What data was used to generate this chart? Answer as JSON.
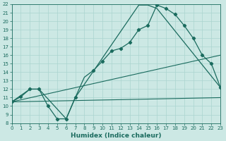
{
  "xlabel": "Humidex (Indice chaleur)",
  "xlim": [
    0,
    23
  ],
  "ylim": [
    8,
    22
  ],
  "xticks": [
    0,
    1,
    2,
    3,
    4,
    5,
    6,
    7,
    8,
    9,
    10,
    11,
    12,
    13,
    14,
    15,
    16,
    17,
    18,
    19,
    20,
    21,
    22,
    23
  ],
  "yticks": [
    8,
    9,
    10,
    11,
    12,
    13,
    14,
    15,
    16,
    17,
    18,
    19,
    20,
    21,
    22
  ],
  "bg_color": "#cce8e4",
  "grid_color": "#aad4cf",
  "line_color": "#1a6b5e",
  "line1_x": [
    0,
    1,
    2,
    3,
    4,
    5,
    6,
    7,
    8,
    9,
    10,
    11,
    12,
    13,
    14,
    15,
    16,
    17,
    18,
    19,
    20,
    21,
    22,
    23
  ],
  "line1_y": [
    10.5,
    11.1,
    12.0,
    12.0,
    10.0,
    8.5,
    8.5,
    11.0,
    13.4,
    14.2,
    15.3,
    16.5,
    16.8,
    17.5,
    19.0,
    19.5,
    21.9,
    21.5,
    20.8,
    19.5,
    18.0,
    16.0,
    15.0,
    12.2
  ],
  "line1_markers": [
    0,
    1,
    2,
    3,
    4,
    5,
    6,
    7,
    9,
    10,
    11,
    12,
    13,
    14,
    15,
    16,
    17,
    18,
    19,
    20,
    21,
    22,
    23
  ],
  "line2_x": [
    0,
    2,
    3,
    6,
    7,
    14,
    15,
    16,
    23
  ],
  "line2_y": [
    10.5,
    12.0,
    12.0,
    8.5,
    11.0,
    21.9,
    21.9,
    21.5,
    12.2
  ],
  "line3_x": [
    0,
    23
  ],
  "line3_y": [
    10.5,
    16.0
  ],
  "line4_x": [
    0,
    23
  ],
  "line4_y": [
    10.5,
    11.0
  ],
  "xlabel_fontsize": 6.5,
  "tick_fontsize": 5.0
}
